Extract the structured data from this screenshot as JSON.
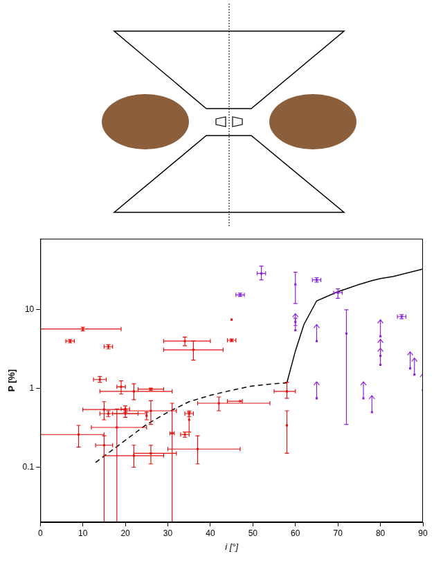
{
  "chart_data": {
    "type": "scatter",
    "xlabel": "i [°]",
    "ylabel": "P [%]",
    "xlim": [
      0,
      90
    ],
    "xticks": [
      0,
      10,
      20,
      30,
      40,
      50,
      60,
      70,
      80,
      90
    ],
    "ylim": [
      0.02,
      80
    ],
    "yticks": [
      0.1,
      1,
      10
    ],
    "log": "y",
    "grid": false,
    "series": [
      {
        "type": "scatter",
        "color": "#e0100e",
        "marker": "square",
        "x": [
          7,
          10,
          16,
          14,
          19,
          22,
          26,
          20,
          20,
          15,
          16,
          26,
          25,
          15,
          18,
          9,
          22,
          26,
          31,
          37,
          34,
          36,
          34,
          35,
          35,
          45,
          45,
          42,
          47,
          58,
          58
        ],
        "y": [
          4.0,
          5.7,
          3.4,
          1.3,
          1.05,
          0.92,
          0.98,
          0.55,
          0.48,
          0.54,
          0.48,
          0.52,
          0.45,
          0.19,
          0.32,
          0.26,
          0.14,
          0.15,
          0.27,
          0.17,
          4.0,
          3.1,
          0.26,
          0.48,
          0.4,
          7.5,
          4.1,
          0.65,
          0.69,
          0.92,
          0.34
        ],
        "x_range": [
          [
            6,
            8
          ],
          [
            0,
            19
          ],
          [
            15,
            17
          ],
          [
            12.5,
            15.5
          ],
          [
            18,
            20
          ],
          [
            14,
            31
          ],
          [
            23,
            29
          ],
          [
            19,
            21
          ],
          [
            17,
            23
          ],
          [
            10,
            20
          ],
          [
            14,
            25
          ],
          [
            20,
            32
          ],
          null,
          [
            13,
            17
          ],
          [
            12,
            25
          ],
          [
            0,
            15
          ],
          [
            15,
            29
          ],
          [
            22,
            32
          ],
          [
            30.5,
            31.5
          ],
          [
            30,
            47
          ],
          [
            29,
            40
          ],
          [
            29,
            43
          ],
          [
            33,
            35
          ],
          [
            34,
            36
          ],
          null,
          null,
          [
            44,
            46
          ],
          [
            37,
            54
          ],
          [
            44,
            47.5
          ],
          [
            55,
            60
          ],
          null
        ],
        "y_range": [
          [
            3.8,
            4.2
          ],
          [
            5.4,
            6.0
          ],
          [
            3.2,
            3.6
          ],
          [
            1.2,
            1.42
          ],
          [
            0.85,
            1.25
          ],
          [
            0.72,
            1.15
          ],
          [
            0.95,
            1.01
          ],
          [
            0.5,
            0.6
          ],
          [
            0.43,
            0.53
          ],
          [
            0.4,
            0.68
          ],
          [
            0.44,
            0.52
          ],
          [
            0.35,
            0.7
          ],
          [
            0.4,
            0.5
          ],
          [
            0.01,
            0.25
          ],
          [
            0.01,
            0.55
          ],
          [
            0.18,
            0.34
          ],
          [
            0.1,
            0.19
          ],
          [
            0.11,
            0.19
          ],
          [
            0.01,
            0.65
          ],
          [
            0.11,
            0.25
          ],
          [
            3.5,
            4.5
          ],
          [
            2.3,
            4.0
          ],
          [
            0.24,
            0.28
          ],
          [
            0.44,
            0.52
          ],
          [
            0.28,
            0.5
          ],
          null,
          [
            3.95,
            4.25
          ],
          [
            0.52,
            0.78
          ],
          null,
          [
            0.75,
            1.2
          ],
          [
            0.15,
            0.52
          ]
        ]
      },
      {
        "type": "scatter",
        "color": "#8e24d8",
        "marker": "square",
        "x": [
          47,
          52,
          60,
          60,
          65,
          70,
          72,
          85
        ],
        "y": [
          15.5,
          29,
          21,
          7,
          24,
          16.5,
          5,
          8.2
        ],
        "x_range": [
          [
            46,
            48
          ],
          [
            51,
            53
          ],
          null,
          null,
          [
            64,
            66
          ],
          [
            69,
            71
          ],
          null,
          [
            84,
            86
          ]
        ],
        "y_range": [
          [
            14.8,
            16.3
          ],
          [
            24,
            36
          ],
          [
            12,
            30
          ],
          [
            6.3,
            7.8
          ],
          [
            22.5,
            25.5
          ],
          [
            14,
            18.5
          ],
          [
            0.35,
            10
          ],
          [
            7.7,
            8.7
          ]
        ]
      },
      {
        "type": "scatter",
        "color": "#8e24d8",
        "marker": "lower_limit",
        "x": [
          60,
          65,
          65,
          76,
          78,
          80,
          80,
          80,
          87,
          88,
          90
        ],
        "y": [
          5.5,
          4,
          0.75,
          0.75,
          0.5,
          4.6,
          2.6,
          2.0,
          1.8,
          1.5,
          0.95
        ]
      },
      {
        "type": "line",
        "color": "#000000",
        "line_style": "dashed",
        "x": [
          13,
          20,
          25,
          30,
          35,
          40,
          45,
          50,
          55,
          58
        ],
        "y": [
          0.115,
          0.22,
          0.35,
          0.5,
          0.68,
          0.82,
          0.95,
          1.08,
          1.15,
          1.18
        ]
      },
      {
        "type": "line",
        "color": "#000000",
        "line_style": "solid",
        "x": [
          58,
          60,
          62,
          65,
          70,
          75,
          78,
          80,
          83,
          90
        ],
        "y": [
          1.18,
          3,
          6.5,
          13,
          17,
          21,
          23.5,
          25,
          26.5,
          33
        ]
      }
    ]
  }
}
